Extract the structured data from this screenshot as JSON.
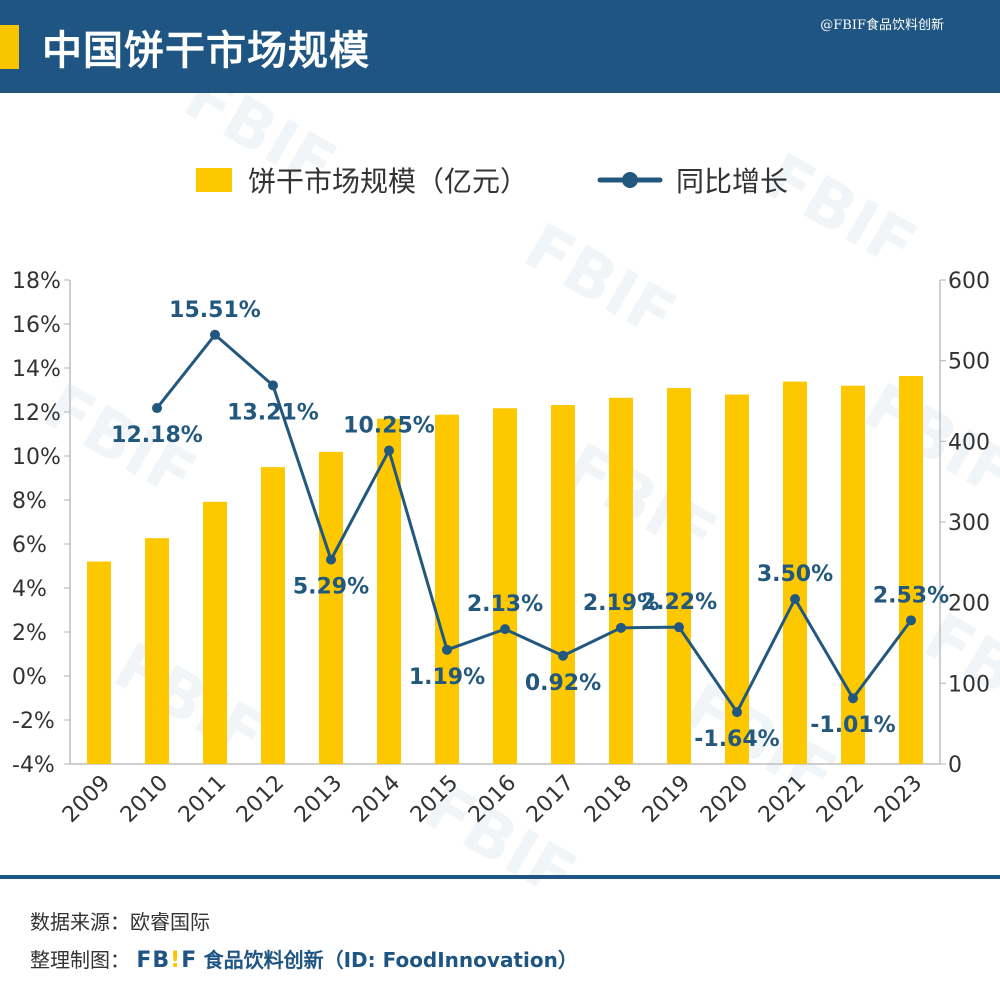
{
  "header": {
    "title": "中国饼干市场规模",
    "credit": "@FBIF食品饮料创新"
  },
  "watermark": "FBIF",
  "colors": {
    "header_bg": "#1f5582",
    "accent": "#f7c600",
    "bar": "#fdc800",
    "line": "#23587e"
  },
  "chart_data": {
    "type": "bar",
    "categories": [
      "2009",
      "2010",
      "2011",
      "2012",
      "2013",
      "2014",
      "2015",
      "2016",
      "2017",
      "2018",
      "2019",
      "2020",
      "2021",
      "2022",
      "2023"
    ],
    "series": [
      {
        "name": "饼干市场规模（亿元）",
        "type": "bar",
        "axis": "right",
        "values": [
          251,
          280,
          325,
          368,
          387,
          428,
          433,
          441,
          445,
          454,
          466,
          458,
          474,
          469,
          481
        ]
      },
      {
        "name": "同比增长",
        "type": "line",
        "axis": "left",
        "values": [
          null,
          12.18,
          15.51,
          13.21,
          5.29,
          10.25,
          1.19,
          2.13,
          0.92,
          2.19,
          2.22,
          -1.64,
          3.5,
          -1.01,
          2.53
        ],
        "labels": [
          "",
          "12.18%",
          "15.51%",
          "13.21%",
          "5.29%",
          "10.25%",
          "1.19%",
          "2.13%",
          "0.92%",
          "2.19%",
          "2.22%",
          "-1.64%",
          "3.50%",
          "-1.01%",
          "2.53%"
        ]
      }
    ],
    "y_left": {
      "range": [
        -4,
        18
      ],
      "ticks": [
        "18%",
        "16%",
        "14%",
        "12%",
        "10%",
        "8%",
        "6%",
        "4%",
        "2%",
        "0%",
        "-2%",
        "-4%"
      ]
    },
    "y_right": {
      "range": [
        0,
        600
      ],
      "ticks": [
        "600",
        "500",
        "400",
        "300",
        "200",
        "100",
        "0"
      ]
    },
    "legend": {
      "position": "top",
      "items": [
        "饼干市场规模（亿元）",
        "同比增长"
      ]
    },
    "grid": false
  },
  "footer": {
    "source": "数据来源：欧睿国际",
    "maker_prefix": "整理制图：",
    "logo_a": "FB",
    "logo_b": "!",
    "logo_c": "F",
    "maker_brand": "食品饮料创新（ID: FoodInnovation）"
  }
}
